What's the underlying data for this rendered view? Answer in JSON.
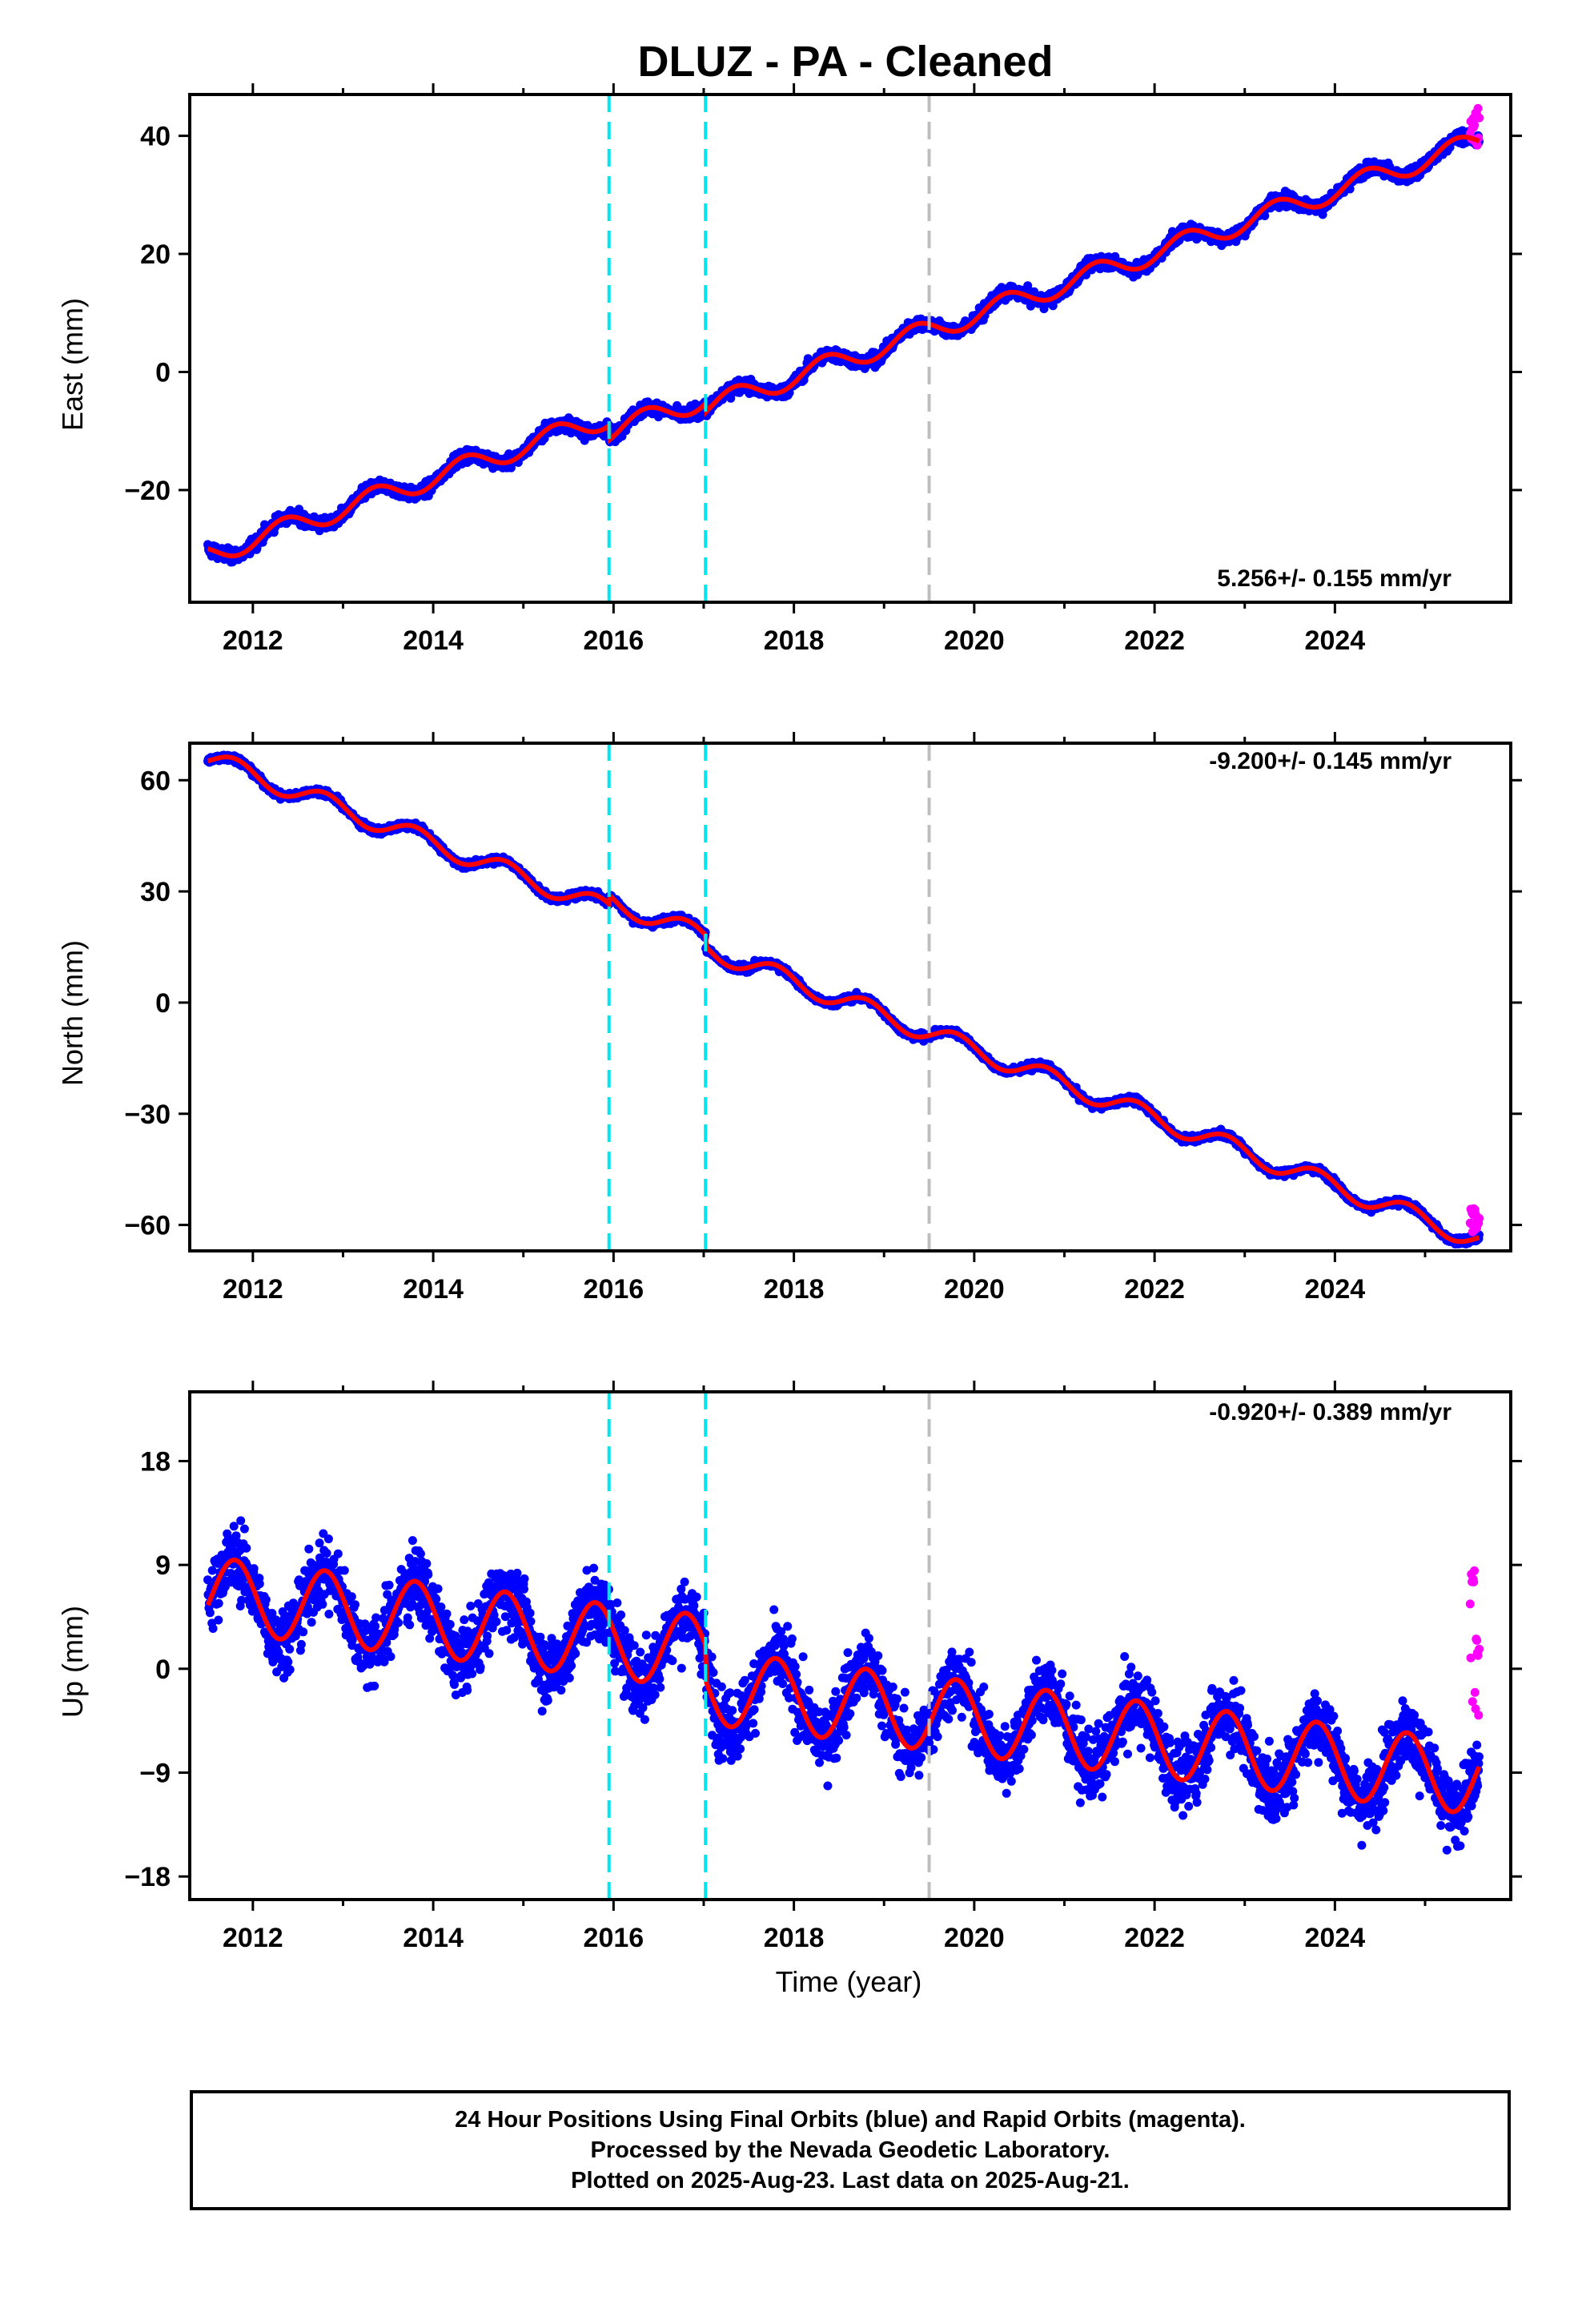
{
  "chart_data": {
    "title": "DLUZ  - PA - Cleaned",
    "xlabel": "Time (year)",
    "xlim": [
      2011.3,
      2025.95
    ],
    "xticks": [
      "2012",
      "2014",
      "2016",
      "2018",
      "2020",
      "2022",
      "2024"
    ],
    "event_lines": [
      {
        "x": 2015.95,
        "color": "#00e5ee",
        "style": "dashed"
      },
      {
        "x": 2017.02,
        "color": "#00e5ee",
        "style": "dashed"
      },
      {
        "x": 2019.5,
        "color": "#bebebe",
        "style": "dashed"
      }
    ],
    "series_colors": {
      "final": "#0000ff",
      "rapid": "#ff00ff",
      "model": "#ff0000"
    },
    "panels": [
      {
        "type": "scatter",
        "component": "east",
        "ylabel": "East (mm)",
        "ylim": [
          -39,
          47
        ],
        "yticks": [
          "40",
          "20",
          "0",
          "−20"
        ],
        "ytick_values": [
          40,
          20,
          0,
          -20
        ],
        "rate_text": "5.256+/- 0.155 mm/yr",
        "rate_position": "bottom-right",
        "model": {
          "start": 2011.5,
          "end": 2025.6,
          "y0": -31,
          "rate": 5.256,
          "amplitude": 1.8,
          "phase": 0.1,
          "offsets": [
            {
              "x": 2015.95,
              "dy": -2.5
            },
            {
              "x": 2017.02,
              "dy": -1.5
            }
          ]
        },
        "scatter_noise": 1.4,
        "rapid_points": {
          "x_start": 2025.5,
          "x_end": 2025.6,
          "y_min": 38,
          "y_max": 45
        }
      },
      {
        "type": "scatter",
        "component": "north",
        "ylabel": "North (mm)",
        "ylim": [
          -67,
          70
        ],
        "yticks": [
          "60",
          "30",
          "0",
          "−30",
          "−60"
        ],
        "ytick_values": [
          60,
          30,
          0,
          -30,
          -60
        ],
        "rate_text": "-9.200+/- 0.145 mm/yr",
        "rate_position": "top-right",
        "model": {
          "start": 2011.5,
          "end": 2025.6,
          "y0": 66,
          "rate": -9.2,
          "amplitude": 2.6,
          "phase": 0.55,
          "offsets": [
            {
              "x": 2015.95,
              "dy": 2.5
            },
            {
              "x": 2017.02,
              "dy": -3
            }
          ]
        },
        "scatter_noise": 1.2,
        "rapid_points": {
          "x_start": 2025.5,
          "x_end": 2025.6,
          "y_min": -62,
          "y_max": -55
        }
      },
      {
        "type": "scatter",
        "component": "up",
        "ylabel": "Up (mm)",
        "ylim": [
          -20,
          24
        ],
        "yticks": [
          "18",
          "9",
          "0",
          "−9",
          "−18"
        ],
        "ytick_values": [
          18,
          9,
          0,
          -9,
          -18
        ],
        "rate_text": "-0.920+/- 0.389 mm/yr",
        "rate_position": "top-right",
        "model": {
          "start": 2011.5,
          "end": 2025.6,
          "y0": 6.5,
          "rate": -0.92,
          "amplitude": 3.2,
          "phase": 0.55,
          "offsets": [
            {
              "x": 2017.02,
              "dy": -3
            }
          ]
        },
        "scatter_noise": 3.8,
        "rapid_points": {
          "x_start": 2025.5,
          "x_end": 2025.6,
          "y_min": -5,
          "y_max": 11.5
        }
      }
    ]
  },
  "footer": {
    "line1": "24 Hour Positions Using Final Orbits (blue) and Rapid Orbits (magenta).",
    "line2": "Processed by the Nevada Geodetic Laboratory.",
    "line3": "Plotted on 2025-Aug-23. Last data on 2025-Aug-21."
  }
}
